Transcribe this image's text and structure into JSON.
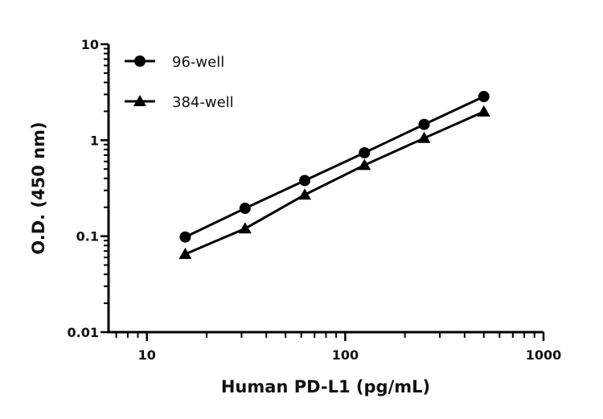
{
  "chart_data": {
    "type": "line",
    "title": "",
    "xlabel": "Human PD-L1 (pg/mL)",
    "ylabel": "O.D. (450 nm)",
    "xscale": "log",
    "yscale": "log",
    "xlim": [
      6.4,
      1000
    ],
    "ylim": [
      0.01,
      10
    ],
    "xticks": [
      "10",
      "100",
      "1000"
    ],
    "yticks": [
      "0.01",
      "0.1",
      "1",
      "10"
    ],
    "grid": false,
    "legend": "top-left",
    "x": [
      15.6,
      31.25,
      62.5,
      125,
      250,
      500
    ],
    "series": [
      {
        "name": "96-well",
        "marker": "circle",
        "color": "#000000",
        "values": [
          0.098,
          0.195,
          0.38,
          0.74,
          1.46,
          2.85
        ]
      },
      {
        "name": "384-well",
        "marker": "triangle",
        "color": "#000000",
        "values": [
          0.065,
          0.12,
          0.27,
          0.55,
          1.05,
          1.98
        ]
      }
    ]
  }
}
